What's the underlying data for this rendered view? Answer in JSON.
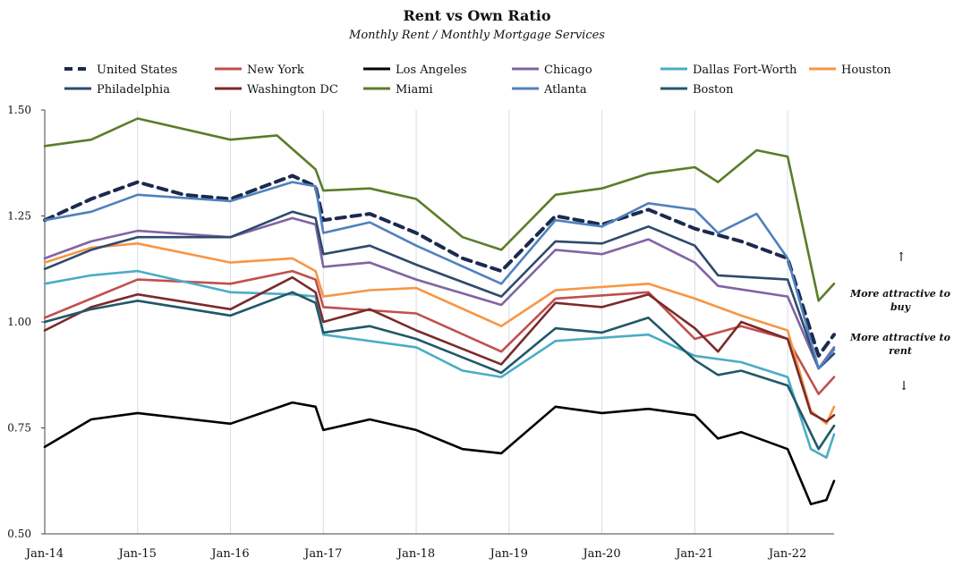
{
  "chart_data": {
    "type": "line",
    "title": "Rent vs Own Ratio",
    "subtitle": "Monthly Rent / Monthly Mortgage Services",
    "xlabel": "",
    "ylabel": "",
    "ylim": [
      0.5,
      1.5
    ],
    "yticks": [
      "0.50",
      "0.75",
      "1.00",
      "1.25",
      "1.50"
    ],
    "xticks": [
      "Jan-14",
      "Jan-15",
      "Jan-16",
      "Jan-17",
      "Jan-18",
      "Jan-19",
      "Jan-20",
      "Jan-21",
      "Jan-22"
    ],
    "x_start": "Jan-14",
    "x_end": "Jul-22",
    "grid": "vertical",
    "legend_position": "top",
    "annotations": {
      "up_label": "More attractive to buy",
      "down_label": "More attractive to rent"
    },
    "series": [
      {
        "name": "United States",
        "color": "#1b2a4e",
        "dash": true,
        "points": [
          [
            "Jan-14",
            1.24
          ],
          [
            "Jul-14",
            1.29
          ],
          [
            "Jan-15",
            1.33
          ],
          [
            "Jul-15",
            1.3
          ],
          [
            "Jan-16",
            1.29
          ],
          [
            "Sep-16",
            1.345
          ],
          [
            "Dec-16",
            1.32
          ],
          [
            "Jan-17",
            1.24
          ],
          [
            "Jul-17",
            1.255
          ],
          [
            "Jan-18",
            1.21
          ],
          [
            "Jul-18",
            1.15
          ],
          [
            "Dec-18",
            1.12
          ],
          [
            "Jul-19",
            1.25
          ],
          [
            "Jan-20",
            1.23
          ],
          [
            "Jul-20",
            1.265
          ],
          [
            "Jan-21",
            1.22
          ],
          [
            "Jul-21",
            1.19
          ],
          [
            "Jan-22",
            1.15
          ],
          [
            "May-22",
            0.92
          ],
          [
            "Jul-22",
            0.97
          ]
        ]
      },
      {
        "name": "New York",
        "color": "#c0504d",
        "points": [
          [
            "Jan-14",
            1.01
          ],
          [
            "Jan-15",
            1.1
          ],
          [
            "Jan-16",
            1.09
          ],
          [
            "Sep-16",
            1.12
          ],
          [
            "Dec-16",
            1.1
          ],
          [
            "Jan-17",
            1.035
          ],
          [
            "Jan-18",
            1.02
          ],
          [
            "Dec-18",
            0.93
          ],
          [
            "Jul-19",
            1.055
          ],
          [
            "Jul-20",
            1.07
          ],
          [
            "Jan-21",
            0.96
          ],
          [
            "Jul-21",
            0.99
          ],
          [
            "Jan-22",
            0.96
          ],
          [
            "May-22",
            0.83
          ],
          [
            "Jul-22",
            0.87
          ]
        ]
      },
      {
        "name": "Los Angeles",
        "color": "#000000",
        "points": [
          [
            "Jan-14",
            0.705
          ],
          [
            "Jul-14",
            0.77
          ],
          [
            "Jan-15",
            0.785
          ],
          [
            "Jan-16",
            0.76
          ],
          [
            "Sep-16",
            0.81
          ],
          [
            "Dec-16",
            0.8
          ],
          [
            "Jan-17",
            0.745
          ],
          [
            "Jul-17",
            0.77
          ],
          [
            "Jan-18",
            0.745
          ],
          [
            "Jul-18",
            0.7
          ],
          [
            "Dec-18",
            0.69
          ],
          [
            "Jul-19",
            0.8
          ],
          [
            "Jan-20",
            0.785
          ],
          [
            "Jul-20",
            0.795
          ],
          [
            "Jan-21",
            0.78
          ],
          [
            "Apr-21",
            0.725
          ],
          [
            "Jul-21",
            0.74
          ],
          [
            "Jan-22",
            0.7
          ],
          [
            "Apr-22",
            0.57
          ],
          [
            "Jun-22",
            0.58
          ],
          [
            "Jul-22",
            0.625
          ]
        ]
      },
      {
        "name": "Chicago",
        "color": "#8064a2",
        "points": [
          [
            "Jan-14",
            1.15
          ],
          [
            "Jul-14",
            1.19
          ],
          [
            "Jan-15",
            1.215
          ],
          [
            "Jan-16",
            1.2
          ],
          [
            "Sep-16",
            1.245
          ],
          [
            "Dec-16",
            1.23
          ],
          [
            "Jan-17",
            1.13
          ],
          [
            "Jul-17",
            1.14
          ],
          [
            "Jan-18",
            1.1
          ],
          [
            "Dec-18",
            1.04
          ],
          [
            "Jul-19",
            1.17
          ],
          [
            "Jan-20",
            1.16
          ],
          [
            "Jul-20",
            1.195
          ],
          [
            "Jan-21",
            1.14
          ],
          [
            "Apr-21",
            1.085
          ],
          [
            "Jan-22",
            1.06
          ],
          [
            "May-22",
            0.89
          ],
          [
            "Jul-22",
            0.94
          ]
        ]
      },
      {
        "name": "Dallas Fort-Worth",
        "color": "#4bacc6",
        "points": [
          [
            "Jan-14",
            1.09
          ],
          [
            "Jul-14",
            1.11
          ],
          [
            "Jan-15",
            1.12
          ],
          [
            "Jan-16",
            1.07
          ],
          [
            "Sep-16",
            1.065
          ],
          [
            "Dec-16",
            1.06
          ],
          [
            "Jan-17",
            0.97
          ],
          [
            "Jan-18",
            0.94
          ],
          [
            "Jul-18",
            0.885
          ],
          [
            "Dec-18",
            0.87
          ],
          [
            "Jul-19",
            0.955
          ],
          [
            "Jul-20",
            0.97
          ],
          [
            "Jan-21",
            0.92
          ],
          [
            "Jul-21",
            0.905
          ],
          [
            "Jan-22",
            0.87
          ],
          [
            "Apr-22",
            0.7
          ],
          [
            "Jun-22",
            0.68
          ],
          [
            "Jul-22",
            0.735
          ]
        ]
      },
      {
        "name": "Houston",
        "color": "#f79646",
        "points": [
          [
            "Jan-14",
            1.14
          ],
          [
            "Jul-14",
            1.175
          ],
          [
            "Jan-15",
            1.185
          ],
          [
            "Jan-16",
            1.14
          ],
          [
            "Sep-16",
            1.15
          ],
          [
            "Dec-16",
            1.12
          ],
          [
            "Jan-17",
            1.06
          ],
          [
            "Jul-17",
            1.075
          ],
          [
            "Jan-18",
            1.08
          ],
          [
            "Dec-18",
            0.99
          ],
          [
            "Jul-19",
            1.075
          ],
          [
            "Jul-20",
            1.09
          ],
          [
            "Jan-21",
            1.055
          ],
          [
            "Jul-21",
            1.015
          ],
          [
            "Jan-22",
            0.98
          ],
          [
            "Apr-22",
            0.79
          ],
          [
            "Jun-22",
            0.76
          ],
          [
            "Jul-22",
            0.8
          ]
        ]
      },
      {
        "name": "Philadelphia",
        "color": "#2e4a6b",
        "points": [
          [
            "Jan-14",
            1.125
          ],
          [
            "Jul-14",
            1.17
          ],
          [
            "Jan-15",
            1.2
          ],
          [
            "Jan-16",
            1.2
          ],
          [
            "Sep-16",
            1.26
          ],
          [
            "Dec-16",
            1.245
          ],
          [
            "Jan-17",
            1.16
          ],
          [
            "Jul-17",
            1.18
          ],
          [
            "Jan-18",
            1.135
          ],
          [
            "Dec-18",
            1.06
          ],
          [
            "Jul-19",
            1.19
          ],
          [
            "Jan-20",
            1.185
          ],
          [
            "Jul-20",
            1.225
          ],
          [
            "Jan-21",
            1.18
          ],
          [
            "Apr-21",
            1.11
          ],
          [
            "Jan-22",
            1.1
          ],
          [
            "May-22",
            0.89
          ],
          [
            "Jul-22",
            0.925
          ]
        ]
      },
      {
        "name": "Washington DC",
        "color": "#7b2a2a",
        "points": [
          [
            "Jan-14",
            0.98
          ],
          [
            "Jul-14",
            1.035
          ],
          [
            "Jan-15",
            1.065
          ],
          [
            "Jan-16",
            1.03
          ],
          [
            "Sep-16",
            1.105
          ],
          [
            "Dec-16",
            1.07
          ],
          [
            "Jan-17",
            1.0
          ],
          [
            "Jul-17",
            1.03
          ],
          [
            "Jan-18",
            0.98
          ],
          [
            "Dec-18",
            0.9
          ],
          [
            "Jul-19",
            1.045
          ],
          [
            "Jan-20",
            1.035
          ],
          [
            "Jul-20",
            1.065
          ],
          [
            "Jan-21",
            0.985
          ],
          [
            "Apr-21",
            0.93
          ],
          [
            "Jul-21",
            1.0
          ],
          [
            "Jan-22",
            0.96
          ],
          [
            "Apr-22",
            0.785
          ],
          [
            "Jun-22",
            0.765
          ],
          [
            "Jul-22",
            0.78
          ]
        ]
      },
      {
        "name": "Miami",
        "color": "#5a7d2a",
        "points": [
          [
            "Jan-14",
            1.415
          ],
          [
            "Jul-14",
            1.43
          ],
          [
            "Jan-15",
            1.48
          ],
          [
            "Jan-16",
            1.43
          ],
          [
            "Jul-16",
            1.44
          ],
          [
            "Dec-16",
            1.36
          ],
          [
            "Jan-17",
            1.31
          ],
          [
            "Jul-17",
            1.315
          ],
          [
            "Jan-18",
            1.29
          ],
          [
            "Jul-18",
            1.2
          ],
          [
            "Dec-18",
            1.17
          ],
          [
            "Jul-19",
            1.3
          ],
          [
            "Jan-20",
            1.315
          ],
          [
            "Jul-20",
            1.35
          ],
          [
            "Jan-21",
            1.365
          ],
          [
            "Apr-21",
            1.33
          ],
          [
            "Sep-21",
            1.405
          ],
          [
            "Jan-22",
            1.39
          ],
          [
            "May-22",
            1.05
          ],
          [
            "Jul-22",
            1.09
          ]
        ]
      },
      {
        "name": "Atlanta",
        "color": "#4f81bd",
        "points": [
          [
            "Jan-14",
            1.24
          ],
          [
            "Jul-14",
            1.26
          ],
          [
            "Jan-15",
            1.3
          ],
          [
            "Jan-16",
            1.285
          ],
          [
            "Sep-16",
            1.33
          ],
          [
            "Dec-16",
            1.32
          ],
          [
            "Jan-17",
            1.21
          ],
          [
            "Jul-17",
            1.235
          ],
          [
            "Jan-18",
            1.18
          ],
          [
            "Dec-18",
            1.09
          ],
          [
            "Jul-19",
            1.24
          ],
          [
            "Jan-20",
            1.225
          ],
          [
            "Jul-20",
            1.28
          ],
          [
            "Jan-21",
            1.265
          ],
          [
            "Apr-21",
            1.21
          ],
          [
            "Sep-21",
            1.255
          ],
          [
            "Jan-22",
            1.15
          ],
          [
            "May-22",
            0.89
          ],
          [
            "Jul-22",
            0.935
          ]
        ]
      },
      {
        "name": "Boston",
        "color": "#215868",
        "points": [
          [
            "Jan-14",
            1.0
          ],
          [
            "Jul-14",
            1.03
          ],
          [
            "Jan-15",
            1.05
          ],
          [
            "Jan-16",
            1.015
          ],
          [
            "Sep-16",
            1.07
          ],
          [
            "Dec-16",
            1.045
          ],
          [
            "Jan-17",
            0.975
          ],
          [
            "Jul-17",
            0.99
          ],
          [
            "Jan-18",
            0.96
          ],
          [
            "Dec-18",
            0.88
          ],
          [
            "Jul-19",
            0.985
          ],
          [
            "Jan-20",
            0.975
          ],
          [
            "Jul-20",
            1.01
          ],
          [
            "Jan-21",
            0.91
          ],
          [
            "Apr-21",
            0.875
          ],
          [
            "Jul-21",
            0.885
          ],
          [
            "Jan-22",
            0.85
          ],
          [
            "May-22",
            0.7
          ],
          [
            "Jul-22",
            0.755
          ]
        ]
      }
    ]
  }
}
